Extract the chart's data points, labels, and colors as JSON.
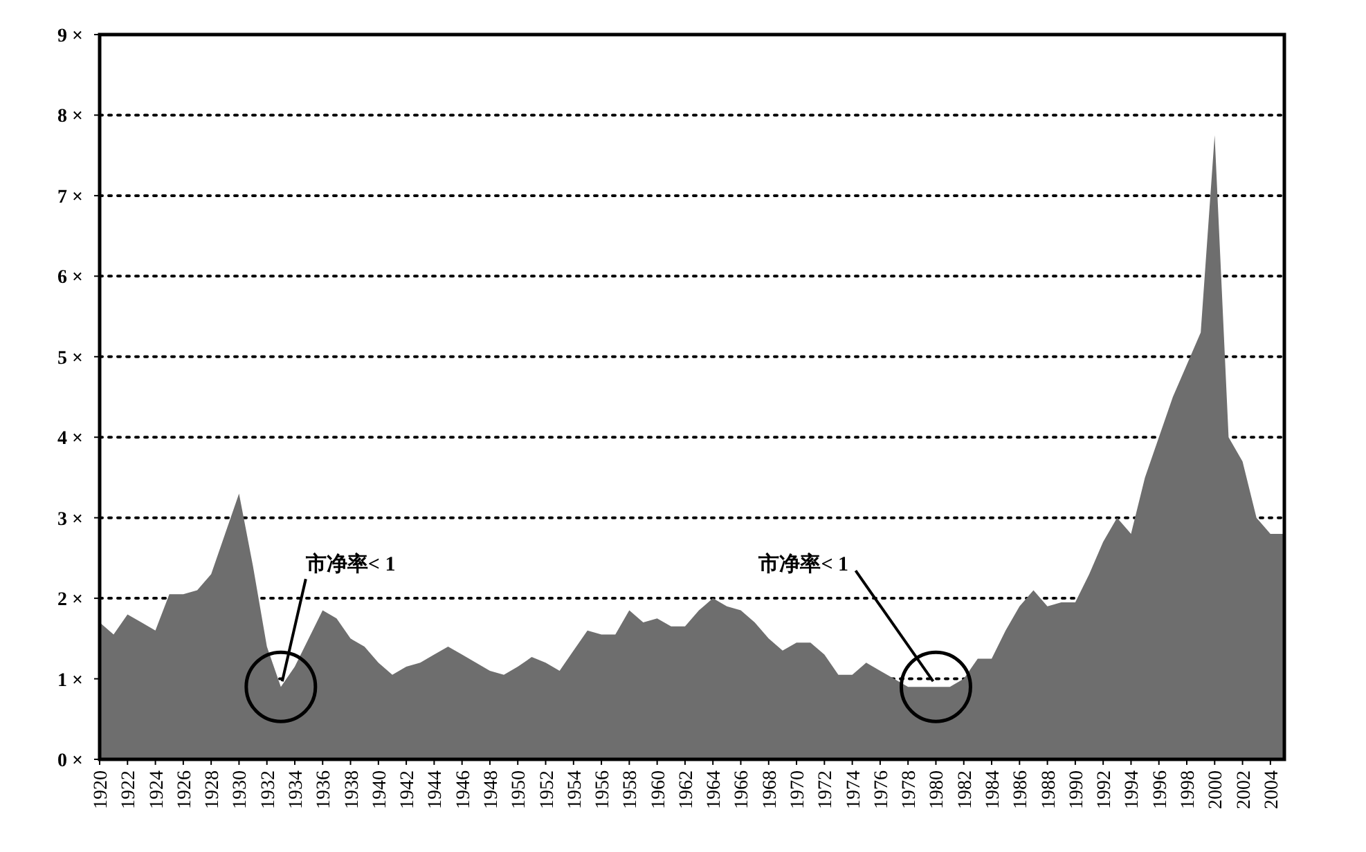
{
  "chart_data": {
    "type": "area",
    "color": "#6e6e6e",
    "grid": "y",
    "x": [
      1920,
      1921,
      1922,
      1923,
      1924,
      1925,
      1926,
      1927,
      1928,
      1929,
      1930,
      1931,
      1932,
      1933,
      1934,
      1935,
      1936,
      1937,
      1938,
      1939,
      1940,
      1941,
      1942,
      1943,
      1944,
      1945,
      1946,
      1947,
      1948,
      1949,
      1950,
      1951,
      1952,
      1953,
      1954,
      1955,
      1956,
      1957,
      1958,
      1959,
      1960,
      1961,
      1962,
      1963,
      1964,
      1965,
      1966,
      1967,
      1968,
      1969,
      1970,
      1971,
      1972,
      1973,
      1974,
      1975,
      1976,
      1977,
      1978,
      1979,
      1980,
      1981,
      1982,
      1983,
      1984,
      1985,
      1986,
      1987,
      1988,
      1989,
      1990,
      1991,
      1992,
      1993,
      1994,
      1995,
      1996,
      1997,
      1998,
      1999,
      2000,
      2001,
      2002,
      2003,
      2004,
      2005
    ],
    "values": [
      1.7,
      1.55,
      1.8,
      1.7,
      1.6,
      2.05,
      2.05,
      2.1,
      2.3,
      2.8,
      3.3,
      2.4,
      1.4,
      0.9,
      1.15,
      1.5,
      1.85,
      1.75,
      1.5,
      1.4,
      1.2,
      1.05,
      1.15,
      1.2,
      1.3,
      1.4,
      1.3,
      1.2,
      1.1,
      1.05,
      1.15,
      1.27,
      1.2,
      1.1,
      1.35,
      1.6,
      1.55,
      1.55,
      1.85,
      1.7,
      1.75,
      1.65,
      1.65,
      1.85,
      2.0,
      1.9,
      1.85,
      1.7,
      1.5,
      1.35,
      1.45,
      1.45,
      1.3,
      1.05,
      1.05,
      1.2,
      1.1,
      1.0,
      0.9,
      0.9,
      0.9,
      0.9,
      1.0,
      1.25,
      1.25,
      1.6,
      1.9,
      2.1,
      1.9,
      1.95,
      1.95,
      2.3,
      2.7,
      3.0,
      2.8,
      3.5,
      4.0,
      4.5,
      4.9,
      5.3,
      7.75,
      4.0,
      3.7,
      3.0,
      2.8,
      2.8
    ],
    "xlim": [
      1920,
      2005
    ],
    "ylim": [
      0,
      9
    ],
    "xticks": [
      1920,
      1922,
      1924,
      1926,
      1928,
      1930,
      1932,
      1934,
      1936,
      1938,
      1940,
      1942,
      1944,
      1946,
      1948,
      1950,
      1952,
      1954,
      1956,
      1958,
      1960,
      1962,
      1964,
      1966,
      1968,
      1970,
      1972,
      1974,
      1976,
      1978,
      1980,
      1982,
      1984,
      1986,
      1988,
      1990,
      1992,
      1994,
      1996,
      1998,
      2000,
      2002,
      2004
    ],
    "yticks": [
      {
        "value": 0,
        "label": "0 ×"
      },
      {
        "value": 1,
        "label": "1 ×"
      },
      {
        "value": 2,
        "label": "2 ×"
      },
      {
        "value": 3,
        "label": "3 ×"
      },
      {
        "value": 4,
        "label": "4 ×"
      },
      {
        "value": 5,
        "label": "5 ×"
      },
      {
        "value": 6,
        "label": "6 ×"
      },
      {
        "value": 7,
        "label": "7 ×"
      },
      {
        "value": 8,
        "label": "8 ×"
      },
      {
        "value": 9,
        "label": "9 ×"
      }
    ],
    "annotations": [
      {
        "text": "市净率< 1",
        "x": 1933,
        "y": 0.9
      },
      {
        "text": "市净率< 1",
        "x": 1980,
        "y": 0.9
      }
    ]
  }
}
